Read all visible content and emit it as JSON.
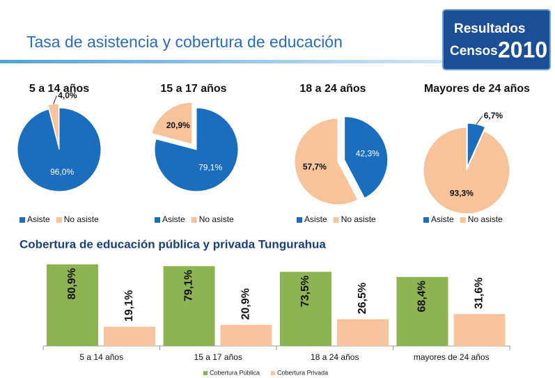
{
  "header": {
    "title": "Tasa de asistencia y cobertura de educación",
    "badge": [
      "Resultados",
      "Censos",
      "2010"
    ]
  },
  "chart_data": [
    {
      "type": "pie",
      "title": "5 a 14 años",
      "labels": [
        "Asiste",
        "No asiste"
      ],
      "values": [
        96.0,
        4.0
      ],
      "value_labels": [
        "96,0%",
        "4,0%"
      ],
      "colors": [
        "#1b6dbe",
        "#f7c39a"
      ]
    },
    {
      "type": "pie",
      "title": "15 a 17 años",
      "labels": [
        "Asiste",
        "No asiste"
      ],
      "values": [
        79.1,
        20.9
      ],
      "value_labels": [
        "79,1%",
        "20,9%"
      ],
      "colors": [
        "#1b6dbe",
        "#f7c39a"
      ]
    },
    {
      "type": "pie",
      "title": "18 a 24 años",
      "labels": [
        "Asiste",
        "No asiste"
      ],
      "values": [
        42.3,
        57.7
      ],
      "value_labels": [
        "42,3%",
        "57,7%"
      ],
      "colors": [
        "#1b6dbe",
        "#f7c39a"
      ]
    },
    {
      "type": "pie",
      "title": "Mayores de 24 años",
      "labels": [
        "Asiste",
        "No asiste"
      ],
      "values": [
        6.7,
        93.3
      ],
      "value_labels": [
        "6,7%",
        "93,3%"
      ],
      "colors": [
        "#1b6dbe",
        "#f7c39a"
      ]
    },
    {
      "type": "bar",
      "title": "Cobertura de educación pública y privada Tungurahua",
      "categories": [
        "5 a 14 años",
        "15 a 17 años",
        "18 a 24 años",
        "mayores de 24 años"
      ],
      "series": [
        {
          "name": "Cobertura Pública",
          "color": "#8db352",
          "values": [
            80.9,
            79.1,
            73.5,
            68.4
          ],
          "value_labels": [
            "80,9%",
            "79,1%",
            "73,5%",
            "68,4%"
          ]
        },
        {
          "name": "Cobertura Privada",
          "color": "#f8c49e",
          "values": [
            19.1,
            20.9,
            26.5,
            31.6
          ],
          "value_labels": [
            "19,1%",
            "20,9%",
            "26,5%",
            "31,6%"
          ]
        }
      ],
      "ylim": [
        0,
        100
      ]
    }
  ]
}
